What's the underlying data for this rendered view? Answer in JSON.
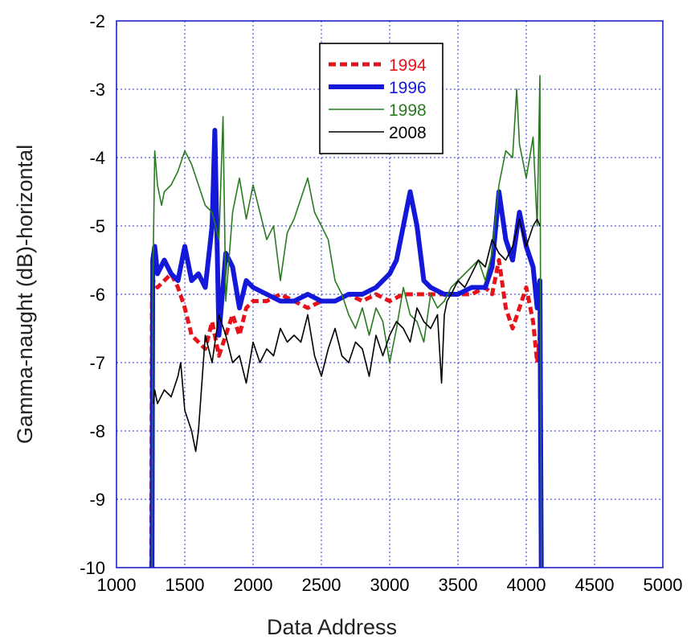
{
  "chart_data": {
    "type": "line",
    "title": "",
    "xlabel": "Data Address",
    "ylabel": "Gamma-naught (dB)-horizontal",
    "xlim": [
      1000,
      5000
    ],
    "ylim": [
      -10,
      -2
    ],
    "x_ticks": [
      1000,
      1500,
      2000,
      2500,
      3000,
      3500,
      4000,
      4500,
      5000
    ],
    "y_ticks": [
      -2,
      -3,
      -4,
      -5,
      -6,
      -7,
      -8,
      -9,
      -10
    ],
    "grid": true,
    "legend_position": "top-center",
    "series": [
      {
        "name": "1994",
        "color": "#e8121a",
        "style": "dashed",
        "x": [
          1255,
          1260,
          1270,
          1300,
          1350,
          1400,
          1450,
          1500,
          1550,
          1600,
          1650,
          1700,
          1750,
          1800,
          1850,
          1900,
          1950,
          2000,
          2100,
          2200,
          2300,
          2400,
          2500,
          2600,
          2700,
          2800,
          2900,
          3000,
          3100,
          3200,
          3300,
          3400,
          3500,
          3600,
          3700,
          3750,
          3800,
          3850,
          3900,
          3950,
          4000,
          4050,
          4080,
          4100,
          4110
        ],
        "y": [
          -10,
          -6.0,
          -5.8,
          -5.9,
          -5.8,
          -5.7,
          -5.9,
          -6.2,
          -6.6,
          -6.7,
          -6.8,
          -6.4,
          -6.9,
          -6.6,
          -6.3,
          -6.6,
          -6.2,
          -6.1,
          -6.1,
          -6.0,
          -6.1,
          -6.2,
          -6.1,
          -6.1,
          -6.0,
          -6.1,
          -6.0,
          -6.1,
          -6.0,
          -6.0,
          -6.0,
          -6.0,
          -6.0,
          -6.0,
          -5.9,
          -6.0,
          -5.5,
          -6.2,
          -6.5,
          -6.2,
          -5.9,
          -6.4,
          -7.0,
          -6.6,
          -10
        ]
      },
      {
        "name": "1996",
        "color": "#1418d8",
        "style": "solid-thick",
        "x": [
          1260,
          1265,
          1280,
          1300,
          1350,
          1400,
          1450,
          1500,
          1550,
          1600,
          1650,
          1700,
          1720,
          1750,
          1800,
          1850,
          1900,
          1950,
          2000,
          2100,
          2200,
          2300,
          2400,
          2500,
          2600,
          2700,
          2800,
          2900,
          3000,
          3050,
          3100,
          3150,
          3200,
          3250,
          3300,
          3400,
          3500,
          3600,
          3700,
          3750,
          3800,
          3850,
          3900,
          3950,
          4000,
          4050,
          4080,
          4100,
          4110
        ],
        "y": [
          -10,
          -5.5,
          -5.3,
          -5.7,
          -5.5,
          -5.7,
          -5.8,
          -5.3,
          -5.8,
          -5.7,
          -5.9,
          -5.0,
          -3.6,
          -6.6,
          -5.4,
          -5.6,
          -6.2,
          -5.8,
          -5.9,
          -6.0,
          -6.1,
          -6.1,
          -6.0,
          -6.1,
          -6.1,
          -6.0,
          -6.0,
          -5.9,
          -5.7,
          -5.5,
          -5.0,
          -4.5,
          -5.0,
          -5.8,
          -5.9,
          -6.0,
          -6.0,
          -5.9,
          -5.9,
          -5.6,
          -4.5,
          -5.2,
          -5.5,
          -4.8,
          -5.3,
          -5.6,
          -6.2,
          -5.8,
          -10
        ]
      },
      {
        "name": "1998",
        "color": "#2a7a22",
        "style": "solid",
        "x": [
          1260,
          1265,
          1280,
          1300,
          1330,
          1350,
          1400,
          1450,
          1500,
          1550,
          1600,
          1650,
          1700,
          1750,
          1780,
          1800,
          1850,
          1900,
          1950,
          2000,
          2050,
          2100,
          2150,
          2200,
          2250,
          2300,
          2350,
          2400,
          2450,
          2500,
          2550,
          2600,
          2650,
          2700,
          2750,
          2800,
          2850,
          2900,
          2950,
          3000,
          3050,
          3100,
          3150,
          3200,
          3250,
          3300,
          3350,
          3400,
          3450,
          3500,
          3550,
          3600,
          3650,
          3700,
          3750,
          3800,
          3850,
          3900,
          3930,
          3950,
          4000,
          4050,
          4080,
          4100,
          4110
        ],
        "y": [
          -10,
          -6.0,
          -3.9,
          -4.4,
          -4.7,
          -4.5,
          -4.4,
          -4.2,
          -3.9,
          -4.1,
          -4.4,
          -4.7,
          -4.8,
          -5.2,
          -3.4,
          -6.1,
          -4.8,
          -4.3,
          -4.9,
          -4.4,
          -4.8,
          -5.2,
          -5.0,
          -5.8,
          -5.1,
          -4.9,
          -4.6,
          -4.3,
          -4.8,
          -5.0,
          -5.2,
          -5.8,
          -6.0,
          -6.3,
          -6.5,
          -6.2,
          -6.6,
          -6.2,
          -6.4,
          -7.0,
          -6.5,
          -5.9,
          -6.3,
          -6.4,
          -6.7,
          -6.0,
          -6.2,
          -6.1,
          -5.9,
          -5.8,
          -5.7,
          -5.6,
          -5.5,
          -5.8,
          -5.4,
          -4.4,
          -3.9,
          -4.0,
          -3.0,
          -3.8,
          -4.3,
          -3.7,
          -5.0,
          -2.8,
          -10
        ]
      },
      {
        "name": "2008",
        "color": "#000000",
        "style": "solid",
        "x": [
          1270,
          1280,
          1300,
          1350,
          1400,
          1450,
          1470,
          1500,
          1550,
          1580,
          1600,
          1650,
          1700,
          1750,
          1800,
          1850,
          1900,
          1950,
          2000,
          2050,
          2100,
          2150,
          2200,
          2250,
          2300,
          2350,
          2400,
          2450,
          2500,
          2550,
          2600,
          2650,
          2700,
          2750,
          2800,
          2850,
          2900,
          2950,
          3000,
          3050,
          3100,
          3150,
          3200,
          3250,
          3300,
          3350,
          3380,
          3400,
          3420,
          3450,
          3500,
          3550,
          3600,
          3650,
          3700,
          3750,
          3800,
          3850,
          3900,
          3950,
          4000,
          4050,
          4080,
          4100
        ],
        "y": [
          -7.6,
          -7.4,
          -7.6,
          -7.4,
          -7.5,
          -7.2,
          -7.0,
          -7.7,
          -8.0,
          -8.3,
          -8.0,
          -6.6,
          -7.0,
          -6.3,
          -6.6,
          -7.0,
          -6.9,
          -7.3,
          -6.7,
          -7.0,
          -6.8,
          -6.9,
          -6.5,
          -6.7,
          -6.6,
          -6.7,
          -6.3,
          -6.9,
          -7.2,
          -6.8,
          -6.5,
          -6.9,
          -7.0,
          -6.7,
          -6.8,
          -7.2,
          -6.6,
          -6.9,
          -6.6,
          -6.4,
          -6.5,
          -6.7,
          -6.2,
          -6.4,
          -6.5,
          -6.3,
          -7.3,
          -6.3,
          -6.1,
          -6.0,
          -5.8,
          -5.9,
          -5.7,
          -5.5,
          -5.6,
          -5.2,
          -5.4,
          -5.5,
          -5.3,
          -4.9,
          -5.3,
          -5.0,
          -4.9,
          -5.0
        ]
      }
    ]
  }
}
